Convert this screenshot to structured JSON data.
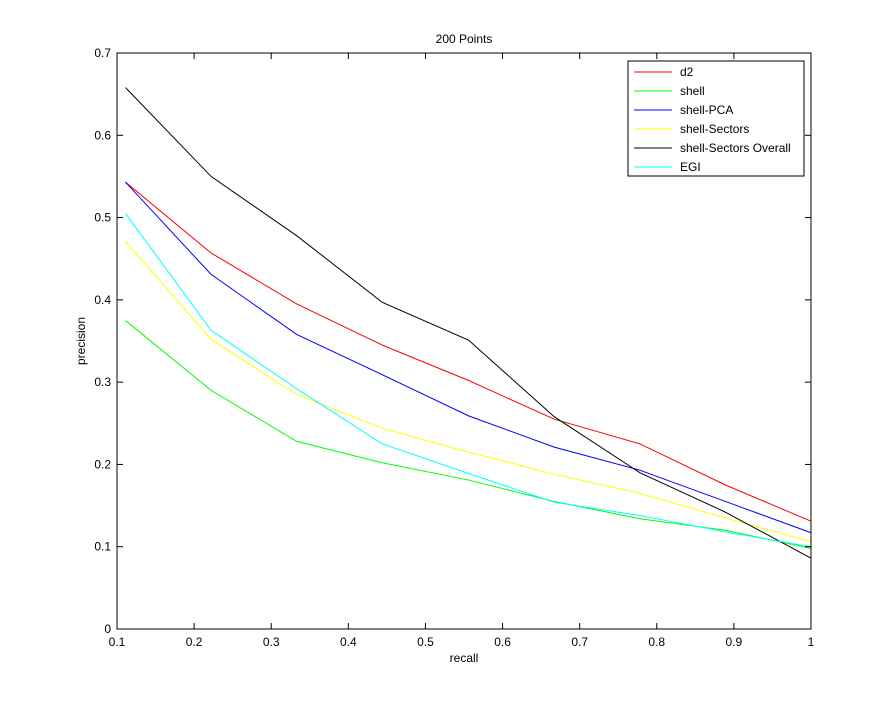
{
  "chart_data": {
    "type": "line",
    "title": "200 Points",
    "xlabel": "recall",
    "ylabel": "precision",
    "xlim": [
      0.1,
      1.0
    ],
    "ylim": [
      0,
      0.7
    ],
    "xticks": [
      0.1,
      0.2,
      0.3,
      0.4,
      0.5,
      0.6,
      0.7,
      0.8,
      0.9,
      1.0
    ],
    "xtick_labels": [
      "0.1",
      "0.2",
      "0.3",
      "0.4",
      "0.5",
      "0.6",
      "0.7",
      "0.8",
      "0.9",
      "1"
    ],
    "yticks": [
      0,
      0.1,
      0.2,
      0.3,
      0.4,
      0.5,
      0.6,
      0.7
    ],
    "ytick_labels": [
      "0",
      "0.1",
      "0.2",
      "0.3",
      "0.4",
      "0.5",
      "0.6",
      "0.7"
    ],
    "grid": false,
    "legend_position": "top-right",
    "x": [
      0.111,
      0.222,
      0.333,
      0.444,
      0.556,
      0.667,
      0.778,
      0.889,
      1.0
    ],
    "series": [
      {
        "name": "d2",
        "color": "#ff0000",
        "values": [
          0.543,
          0.457,
          0.395,
          0.345,
          0.302,
          0.255,
          0.225,
          0.175,
          0.131
        ]
      },
      {
        "name": "shell",
        "color": "#00ff00",
        "values": [
          0.375,
          0.29,
          0.228,
          0.202,
          0.181,
          0.155,
          0.134,
          0.12,
          0.098
        ]
      },
      {
        "name": "shell-PCA",
        "color": "#0000ff",
        "values": [
          0.543,
          0.431,
          0.358,
          0.309,
          0.259,
          0.221,
          0.193,
          0.155,
          0.117
        ]
      },
      {
        "name": "shell-Sectors",
        "color": "#ffff00",
        "values": [
          0.471,
          0.352,
          0.285,
          0.244,
          0.215,
          0.188,
          0.165,
          0.135,
          0.106
        ]
      },
      {
        "name": "shell-Sectors Overall",
        "color": "#000000",
        "values": [
          0.658,
          0.55,
          0.478,
          0.397,
          0.351,
          0.258,
          0.19,
          0.142,
          0.086
        ]
      },
      {
        "name": "EGI",
        "color": "#00ffff",
        "values": [
          0.505,
          0.363,
          0.292,
          0.225,
          0.189,
          0.154,
          0.138,
          0.118,
          0.1
        ]
      }
    ]
  }
}
